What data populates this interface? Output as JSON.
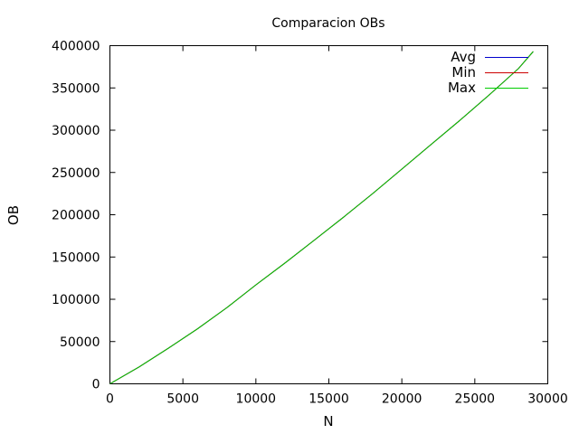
{
  "chart_data": {
    "type": "line",
    "title": "Comparacion OBs",
    "xlabel": "N",
    "ylabel": "OB",
    "xlim": [
      0,
      30000
    ],
    "ylim": [
      0,
      400000
    ],
    "xticks": [
      0,
      5000,
      10000,
      15000,
      20000,
      25000,
      30000
    ],
    "yticks": [
      0,
      50000,
      100000,
      150000,
      200000,
      250000,
      300000,
      350000,
      400000
    ],
    "grid": false,
    "legend_position": "top-right",
    "x": [
      0,
      2000,
      4000,
      6000,
      8000,
      10000,
      12000,
      14000,
      16000,
      18000,
      20000,
      22000,
      24000,
      26000,
      28000,
      29000
    ],
    "series": [
      {
        "name": "Avg",
        "color": "#0000cc",
        "values": [
          0,
          20000,
          42000,
          65000,
          90000,
          117000,
          143000,
          170000,
          197000,
          225000,
          254000,
          283000,
          312000,
          342000,
          373000,
          393000
        ]
      },
      {
        "name": "Min",
        "color": "#cc0000",
        "values": [
          0,
          20000,
          42000,
          65000,
          90000,
          117000,
          143000,
          170000,
          197000,
          225000,
          254000,
          283000,
          312000,
          342000,
          373000,
          393000
        ]
      },
      {
        "name": "Max",
        "color": "#00cc00",
        "values": [
          0,
          20000,
          42000,
          65000,
          90000,
          117000,
          143000,
          170000,
          197000,
          225000,
          254000,
          283000,
          312000,
          342000,
          373000,
          393000
        ]
      }
    ]
  }
}
